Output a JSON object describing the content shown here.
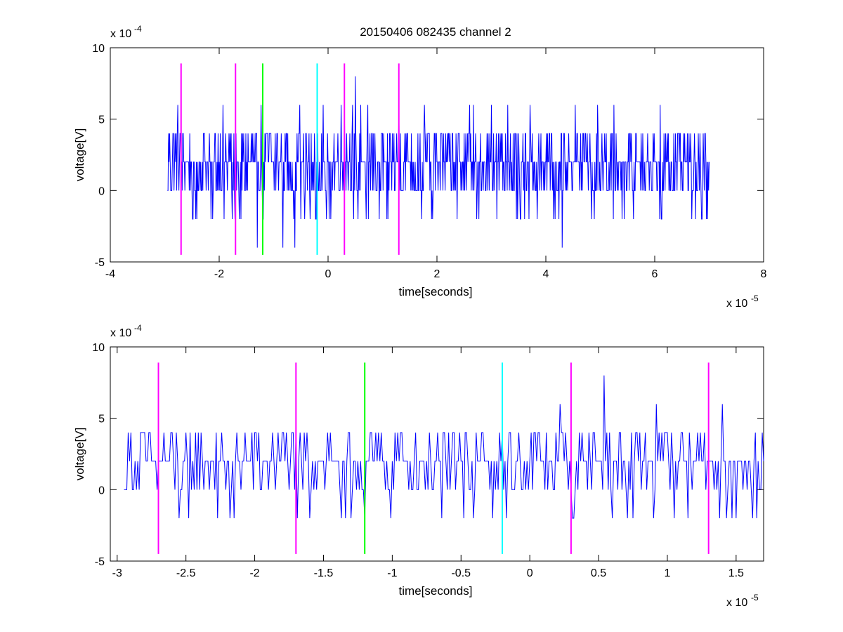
{
  "figure": {
    "title": "20150406 082435 channel 2"
  },
  "chart_data": [
    {
      "type": "line",
      "title": "20150406 082435 channel 2",
      "xlabel": "time[seconds]",
      "ylabel": "voltage[V]",
      "x_exponent_label": "x 10",
      "x_exponent": "-5",
      "y_exponent_label": "x 10",
      "y_exponent": "-4",
      "xlim": [
        -4,
        8
      ],
      "ylim": [
        -5,
        10
      ],
      "xticks": [
        -4,
        -2,
        0,
        2,
        4,
        6,
        8
      ],
      "xtick_labels": [
        "-4",
        "-2",
        "0",
        "2",
        "4",
        "6",
        "8"
      ],
      "yticks": [
        -5,
        0,
        5,
        10
      ],
      "ytick_labels": [
        "-5",
        "0",
        "5",
        "10"
      ],
      "grid": false,
      "series": [
        {
          "color": "#0000ff",
          "x_range": [
            -2.95,
            7.0
          ],
          "sample_step": 0.01,
          "allowed_levels": [
            -4,
            -2,
            0,
            2,
            4,
            6,
            8
          ],
          "level_distribution": {
            "-4": 0.005,
            "-2": 0.06,
            "0": 0.28,
            "2": 0.4,
            "4": 0.245,
            "6": 0.01
          },
          "peaks": [
            {
              "x": 0.5,
              "y": 8
            },
            {
              "x": 0.3,
              "y": 6
            },
            {
              "x": 0.6,
              "y": 6
            },
            {
              "x": 1.3,
              "y": 6
            },
            {
              "x": 2.6,
              "y": 6
            },
            {
              "x": 3.0,
              "y": 6
            },
            {
              "x": 3.3,
              "y": 6
            },
            {
              "x": 4.95,
              "y": 6
            },
            {
              "x": 6.1,
              "y": 6
            },
            {
              "x": 4.3,
              "y": -4
            },
            {
              "x": -1.2,
              "y": -2
            },
            {
              "x": -0.5,
              "y": -2
            },
            {
              "x": 3.1,
              "y": -2
            },
            {
              "x": 6.95,
              "y": -2
            }
          ]
        }
      ],
      "markers": [
        {
          "x": -2.7,
          "color": "#ff00ff",
          "y_range": [
            -4.5,
            8.9
          ]
        },
        {
          "x": -1.7,
          "color": "#ff00ff",
          "y_range": [
            -4.5,
            8.9
          ]
        },
        {
          "x": -1.2,
          "color": "#00ff00",
          "y_range": [
            -4.5,
            8.9
          ]
        },
        {
          "x": -0.2,
          "color": "#00ffff",
          "y_range": [
            -4.5,
            8.9
          ]
        },
        {
          "x": 0.3,
          "color": "#ff00ff",
          "y_range": [
            -4.5,
            8.9
          ]
        },
        {
          "x": 1.3,
          "color": "#ff00ff",
          "y_range": [
            -4.5,
            8.9
          ]
        }
      ]
    },
    {
      "type": "line",
      "xlabel": "time[seconds]",
      "ylabel": "voltage[V]",
      "x_exponent_label": "x 10",
      "x_exponent": "-5",
      "y_exponent_label": "x 10",
      "y_exponent": "-4",
      "xlim": [
        -3.05,
        1.7
      ],
      "ylim": [
        -5,
        10
      ],
      "xticks": [
        -3,
        -2.5,
        -2,
        -1.5,
        -1,
        -0.5,
        0,
        0.5,
        1,
        1.5
      ],
      "xtick_labels": [
        "-3",
        "-2.5",
        "-2",
        "-1.5",
        "-1",
        "-0.5",
        "0",
        "0.5",
        "1",
        "1.5"
      ],
      "yticks": [
        -5,
        0,
        5,
        10
      ],
      "ytick_labels": [
        "-5",
        "0",
        "5",
        "10"
      ],
      "grid": false,
      "series": [
        {
          "color": "#0000ff",
          "x_range": [
            -2.95,
            1.7
          ],
          "sample_step": 0.01,
          "allowed_levels": [
            -2,
            0,
            2,
            4,
            6,
            8
          ],
          "level_distribution": {
            "-2": 0.04,
            "0": 0.27,
            "2": 0.44,
            "4": 0.25
          },
          "peaks": [
            {
              "x": 0.54,
              "y": 8
            },
            {
              "x": 0.22,
              "y": 6
            },
            {
              "x": 0.92,
              "y": 6
            },
            {
              "x": 1.4,
              "y": 6
            },
            {
              "x": -2.55,
              "y": -2
            },
            {
              "x": -2.15,
              "y": -2
            },
            {
              "x": -1.6,
              "y": -2
            },
            {
              "x": -1.2,
              "y": -2
            },
            {
              "x": -0.48,
              "y": -2
            },
            {
              "x": 0.32,
              "y": -2
            },
            {
              "x": 0.9,
              "y": -2
            },
            {
              "x": 1.15,
              "y": -2
            },
            {
              "x": 1.47,
              "y": -2
            },
            {
              "x": 1.62,
              "y": -2
            }
          ]
        }
      ],
      "markers": [
        {
          "x": -2.7,
          "color": "#ff00ff",
          "y_range": [
            -4.5,
            8.9
          ]
        },
        {
          "x": -1.7,
          "color": "#ff00ff",
          "y_range": [
            -4.5,
            8.9
          ]
        },
        {
          "x": -1.2,
          "color": "#00ff00",
          "y_range": [
            -4.5,
            8.9
          ]
        },
        {
          "x": -0.2,
          "color": "#00ffff",
          "y_range": [
            -4.5,
            8.9
          ]
        },
        {
          "x": 0.3,
          "color": "#ff00ff",
          "y_range": [
            -4.5,
            8.9
          ]
        },
        {
          "x": 1.3,
          "color": "#ff00ff",
          "y_range": [
            -4.5,
            8.9
          ]
        }
      ]
    }
  ]
}
